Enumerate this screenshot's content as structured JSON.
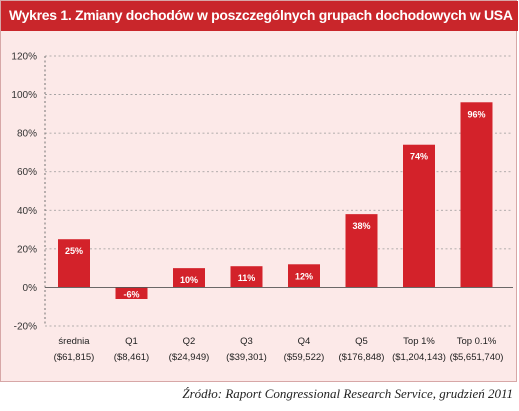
{
  "chart_data": {
    "type": "bar",
    "title": "Wykres 1. Zmiany dochodów w poszczególnych grupach dochodowych w USA",
    "categories": [
      [
        "średnia",
        "($61,815)"
      ],
      [
        "Q1",
        "($8,461)"
      ],
      [
        "Q2",
        "($24,949)"
      ],
      [
        "Q3",
        "($39,301)"
      ],
      [
        "Q4",
        "($59,522)"
      ],
      [
        "Q5",
        "($176,848)"
      ],
      [
        "Top 1%",
        "($1,204,143)"
      ],
      [
        "Top 0.1%",
        "($5,651,740)"
      ]
    ],
    "values": [
      25,
      -6,
      10,
      11,
      12,
      38,
      74,
      96
    ],
    "value_labels": [
      "25%",
      "-6%",
      "10%",
      "11%",
      "12%",
      "38%",
      "74%",
      "96%"
    ],
    "y_ticks": [
      120,
      100,
      80,
      60,
      40,
      20,
      0,
      -20
    ],
    "y_tick_labels": [
      "120%",
      "100%",
      "80%",
      "60%",
      "40%",
      "20%",
      "0%",
      "-20%"
    ],
    "ylim": [
      -20,
      120
    ],
    "grid": "dashed-horizontal",
    "colors": {
      "bar": "#d3222a",
      "background": "#fce9e8",
      "title_bar": "#c9262b",
      "grid": "#999999"
    }
  },
  "source": "Źródło: Raport Congressional Research Service, grudzień 2011"
}
